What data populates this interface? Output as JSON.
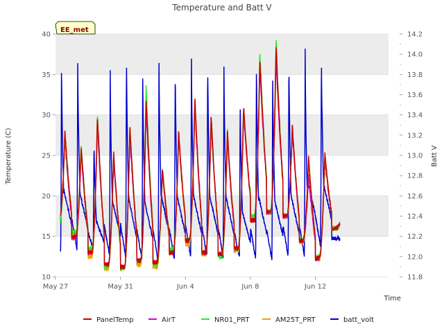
{
  "chart_data": {
    "type": "line",
    "title": "Temperature and Batt V",
    "badge": "EE_met",
    "xlabel": "Time",
    "ylabel": "Temperature (C)",
    "y2label": "Batt V",
    "xlim": [
      0,
      20.5
    ],
    "ylim": [
      10,
      40
    ],
    "y2lim": [
      11.8,
      14.2
    ],
    "x_ticks": [
      {
        "day": 0,
        "label": "May 27"
      },
      {
        "day": 4,
        "label": "May 31"
      },
      {
        "day": 8,
        "label": "Jun 4"
      },
      {
        "day": 12,
        "label": "Jun 8"
      },
      {
        "day": 16,
        "label": "Jun 12"
      }
    ],
    "y_ticks": [
      10,
      15,
      20,
      25,
      30,
      35,
      40
    ],
    "y2_ticks": [
      "11.8",
      "12.0",
      "12.2",
      "12.4",
      "12.6",
      "12.8",
      "13.0",
      "13.2",
      "13.4",
      "13.6",
      "13.8",
      "14.0",
      "14.2"
    ],
    "colors": {
      "PanelTemp": "#cc0000",
      "AirT": "#d400d4",
      "NR01_PRT": "#22ee22",
      "AM25T_PRT": "#f0a000",
      "batt_volt": "#0000cc",
      "band": "#ececec",
      "grid": "#dcdcdc",
      "badge_bg": "#ffffc8"
    },
    "series": [
      {
        "name": "PanelTemp",
        "axis": "left",
        "t_start": 0.3,
        "t_end": 17.5,
        "days": [
          {
            "min": 17.0,
            "max": 28.0
          },
          {
            "min": 15.0,
            "max": 26.0
          },
          {
            "min": 13.0,
            "max": 30.0
          },
          {
            "min": 11.5,
            "max": 25.3
          },
          {
            "min": 11.2,
            "max": 28.7
          },
          {
            "min": 12.0,
            "max": 32.0
          },
          {
            "min": 11.8,
            "max": 23.5
          },
          {
            "min": 13.0,
            "max": 28.0
          },
          {
            "min": 14.5,
            "max": 32.0
          },
          {
            "min": 13.0,
            "max": 30.0
          },
          {
            "min": 12.8,
            "max": 28.0
          },
          {
            "min": 13.5,
            "max": 31.2
          },
          {
            "min": 17.0,
            "max": 37.0
          },
          {
            "min": 18.0,
            "max": 38.5
          },
          {
            "min": 17.5,
            "max": 28.7
          },
          {
            "min": 14.5,
            "max": 24.8
          },
          {
            "min": 12.3,
            "max": 25.3
          },
          {
            "min": 16.0,
            "max": 17.0
          }
        ]
      },
      {
        "name": "AirT",
        "axis": "left",
        "t_start": 0.3,
        "t_end": 17.5,
        "days": [
          {
            "min": 16.8,
            "max": 27.0
          },
          {
            "min": 14.8,
            "max": 25.5
          },
          {
            "min": 13.0,
            "max": 29.0
          },
          {
            "min": 11.5,
            "max": 24.5
          },
          {
            "min": 11.2,
            "max": 27.5
          },
          {
            "min": 12.0,
            "max": 31.0
          },
          {
            "min": 11.8,
            "max": 23.0
          },
          {
            "min": 13.0,
            "max": 27.5
          },
          {
            "min": 14.5,
            "max": 31.0
          },
          {
            "min": 13.0,
            "max": 29.0
          },
          {
            "min": 12.8,
            "max": 27.0
          },
          {
            "min": 13.5,
            "max": 30.5
          },
          {
            "min": 17.0,
            "max": 36.0
          },
          {
            "min": 18.0,
            "max": 37.0
          },
          {
            "min": 17.5,
            "max": 28.0
          },
          {
            "min": 14.5,
            "max": 22.5
          },
          {
            "min": 12.3,
            "max": 24.5
          },
          {
            "min": 16.0,
            "max": 16.8
          }
        ]
      },
      {
        "name": "NR01_PRT",
        "axis": "left",
        "t_start": 0.3,
        "t_end": 17.5,
        "days": [
          {
            "min": 16.5,
            "max": 27.5
          },
          {
            "min": 15.5,
            "max": 26.3
          },
          {
            "min": 13.5,
            "max": 30.0
          },
          {
            "min": 11.3,
            "max": 25.0
          },
          {
            "min": 11.0,
            "max": 28.5
          },
          {
            "min": 12.0,
            "max": 33.5
          },
          {
            "min": 11.5,
            "max": 23.5
          },
          {
            "min": 13.5,
            "max": 28.0
          },
          {
            "min": 14.5,
            "max": 31.8
          },
          {
            "min": 13.0,
            "max": 29.8
          },
          {
            "min": 12.5,
            "max": 28.0
          },
          {
            "min": 13.5,
            "max": 31.0
          },
          {
            "min": 17.5,
            "max": 37.8
          },
          {
            "min": 18.0,
            "max": 39.3
          },
          {
            "min": 17.5,
            "max": 28.8
          },
          {
            "min": 14.5,
            "max": 24.5
          },
          {
            "min": 12.5,
            "max": 25.0
          },
          {
            "min": 16.0,
            "max": 17.0
          }
        ]
      },
      {
        "name": "AM25T_PRT",
        "axis": "left",
        "t_start": 0.3,
        "t_end": 17.5,
        "days": [
          {
            "min": 16.5,
            "max": 27.5
          },
          {
            "min": 15.0,
            "max": 26.0
          },
          {
            "min": 12.5,
            "max": 29.5
          },
          {
            "min": 11.0,
            "max": 25.0
          },
          {
            "min": 11.0,
            "max": 28.5
          },
          {
            "min": 11.5,
            "max": 31.5
          },
          {
            "min": 11.2,
            "max": 23.0
          },
          {
            "min": 13.0,
            "max": 27.5
          },
          {
            "min": 14.0,
            "max": 31.5
          },
          {
            "min": 12.8,
            "max": 29.5
          },
          {
            "min": 12.5,
            "max": 27.5
          },
          {
            "min": 13.2,
            "max": 31.0
          },
          {
            "min": 17.0,
            "max": 37.0
          },
          {
            "min": 18.0,
            "max": 38.8
          },
          {
            "min": 17.5,
            "max": 28.5
          },
          {
            "min": 14.3,
            "max": 24.8
          },
          {
            "min": 12.2,
            "max": 25.0
          },
          {
            "min": 16.0,
            "max": 16.5
          }
        ]
      },
      {
        "name": "batt_volt",
        "axis": "right",
        "t_start": 0.3,
        "t_end": 17.5,
        "days": [
          {
            "min": 12.05,
            "max": 14.0
          },
          {
            "min": 12.1,
            "max": 14.0
          },
          {
            "min": 12.05,
            "max": 13.2
          },
          {
            "min": 12.0,
            "max": 13.85
          },
          {
            "min": 12.0,
            "max": 14.05
          },
          {
            "min": 11.95,
            "max": 13.9
          },
          {
            "min": 11.95,
            "max": 14.05
          },
          {
            "min": 12.0,
            "max": 13.95
          },
          {
            "min": 12.0,
            "max": 14.0
          },
          {
            "min": 12.0,
            "max": 14.0
          },
          {
            "min": 12.0,
            "max": 13.95
          },
          {
            "min": 12.0,
            "max": 13.6
          },
          {
            "min": 11.95,
            "max": 14.0
          },
          {
            "min": 12.0,
            "max": 13.85
          },
          {
            "min": 12.0,
            "max": 14.03
          },
          {
            "min": 12.0,
            "max": 14.05
          },
          {
            "min": 12.2,
            "max": 14.05
          },
          {
            "min": 12.15,
            "max": 12.2
          }
        ]
      }
    ],
    "legend": [
      "PanelTemp",
      "AirT",
      "NR01_PRT",
      "AM25T_PRT",
      "batt_volt"
    ],
    "legend_position": "bottom-center"
  }
}
